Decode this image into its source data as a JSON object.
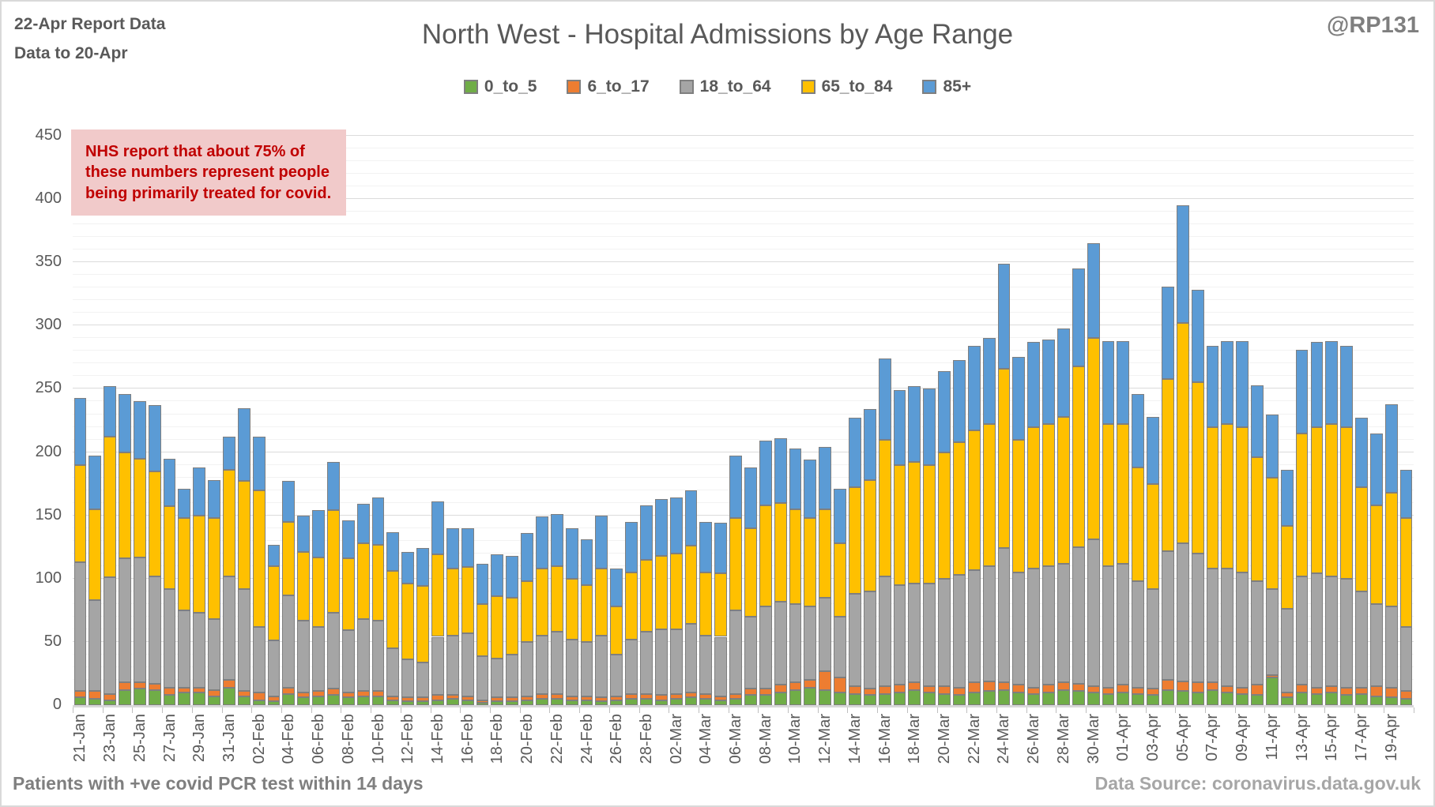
{
  "header": {
    "report_line1": "22-Apr Report Data",
    "report_line2": "Data to 20-Apr",
    "title": "North West - Hospital Admissions by Age Range",
    "watermark": "@RP131"
  },
  "annotation": {
    "text": "NHS report that about 75% of these numbers represent people being primarily treated for covid.",
    "bg_color": "#f1caca",
    "text_color": "#c00000"
  },
  "footer": {
    "left": "Patients with  +ve covid PCR test within 14 days",
    "right": "Data Source: coronavirus.data.gov.uk"
  },
  "colors": {
    "text": "#595959",
    "muted_text": "#7f7f7f",
    "gridline_major": "#dbdbdb",
    "gridline_minor": "#f2f2f2",
    "bar_border": "#7f7f7f"
  },
  "chart_data": {
    "type": "bar",
    "stacked": true,
    "title": "North West - Hospital Admissions by Age Range",
    "xlabel": "",
    "ylabel": "",
    "ylim": [
      0,
      450
    ],
    "ytick_interval": 50,
    "ytick_minor_interval": 10,
    "xtick_label_every": 2,
    "grid": true,
    "legend_position": "top",
    "categories": [
      "21-Jan",
      "22-Jan",
      "23-Jan",
      "24-Jan",
      "25-Jan",
      "26-Jan",
      "27-Jan",
      "28-Jan",
      "29-Jan",
      "30-Jan",
      "31-Jan",
      "01-Feb",
      "02-Feb",
      "03-Feb",
      "04-Feb",
      "05-Feb",
      "06-Feb",
      "07-Feb",
      "08-Feb",
      "09-Feb",
      "10-Feb",
      "11-Feb",
      "12-Feb",
      "13-Feb",
      "14-Feb",
      "15-Feb",
      "16-Feb",
      "17-Feb",
      "18-Feb",
      "19-Feb",
      "20-Feb",
      "21-Feb",
      "22-Feb",
      "23-Feb",
      "24-Feb",
      "25-Feb",
      "26-Feb",
      "27-Feb",
      "28-Feb",
      "01-Mar",
      "02-Mar",
      "03-Mar",
      "04-Mar",
      "05-Mar",
      "06-Mar",
      "07-Mar",
      "08-Mar",
      "09-Mar",
      "10-Mar",
      "11-Mar",
      "12-Mar",
      "13-Mar",
      "14-Mar",
      "15-Mar",
      "16-Mar",
      "17-Mar",
      "18-Mar",
      "19-Mar",
      "20-Mar",
      "21-Mar",
      "22-Mar",
      "23-Mar",
      "24-Mar",
      "25-Mar",
      "26-Mar",
      "27-Mar",
      "28-Mar",
      "29-Mar",
      "30-Mar",
      "31-Mar",
      "01-Apr",
      "02-Apr",
      "03-Apr",
      "04-Apr",
      "05-Apr",
      "06-Apr",
      "07-Apr",
      "08-Apr",
      "09-Apr",
      "10-Apr",
      "11-Apr",
      "12-Apr",
      "13-Apr",
      "14-Apr",
      "15-Apr",
      "16-Apr",
      "17-Apr",
      "18-Apr",
      "19-Apr",
      "20-Apr"
    ],
    "series": [
      {
        "name": "0_to_5",
        "color": "#70ad47",
        "values": [
          6,
          5,
          4,
          12,
          13,
          12,
          8,
          10,
          10,
          7,
          14,
          7,
          4,
          3,
          9,
          6,
          7,
          8,
          6,
          7,
          7,
          4,
          3,
          3,
          4,
          5,
          4,
          2,
          3,
          3,
          4,
          5,
          5,
          4,
          4,
          3,
          4,
          5,
          5,
          4,
          5,
          6,
          5,
          4,
          5,
          8,
          8,
          10,
          12,
          14,
          12,
          10,
          9,
          8,
          9,
          10,
          12,
          10,
          9,
          8,
          10,
          11,
          12,
          10,
          9,
          10,
          12,
          11,
          10,
          9,
          10,
          9,
          8,
          12,
          11,
          10,
          12,
          10,
          9,
          8,
          22,
          6,
          10,
          9,
          10,
          8,
          9,
          7,
          6,
          5
        ]
      },
      {
        "name": "6_to_17",
        "color": "#ed7d31",
        "values": [
          5,
          6,
          5,
          6,
          5,
          5,
          6,
          4,
          4,
          5,
          6,
          4,
          6,
          4,
          5,
          4,
          4,
          5,
          4,
          4,
          4,
          3,
          3,
          3,
          4,
          3,
          3,
          2,
          3,
          3,
          3,
          4,
          4,
          3,
          3,
          3,
          3,
          4,
          4,
          4,
          4,
          4,
          4,
          3,
          4,
          5,
          5,
          6,
          6,
          6,
          15,
          12,
          6,
          5,
          6,
          6,
          6,
          5,
          6,
          6,
          8,
          8,
          6,
          6,
          5,
          6,
          6,
          6,
          5,
          5,
          6,
          5,
          5,
          8,
          8,
          8,
          6,
          5,
          5,
          8,
          2,
          4,
          6,
          5,
          5,
          6,
          5,
          8,
          8,
          6
        ]
      },
      {
        "name": "18_to_64",
        "color": "#a5a5a5",
        "values": [
          102,
          72,
          92,
          98,
          99,
          85,
          78,
          61,
          59,
          56,
          82,
          81,
          52,
          44,
          73,
          57,
          51,
          60,
          49,
          57,
          56,
          38,
          30,
          28,
          46,
          47,
          50,
          35,
          31,
          34,
          43,
          46,
          49,
          45,
          43,
          49,
          33,
          43,
          49,
          52,
          51,
          54,
          46,
          47,
          66,
          57,
          65,
          66,
          62,
          58,
          58,
          48,
          73,
          77,
          87,
          79,
          78,
          81,
          85,
          89,
          89,
          91,
          106,
          89,
          94,
          94,
          94,
          108,
          116,
          96,
          96,
          84,
          79,
          102,
          109,
          102,
          90,
          93,
          91,
          82,
          68,
          66,
          86,
          90,
          87,
          86,
          76,
          65,
          64,
          51
        ]
      },
      {
        "name": "65_to_84",
        "color": "#ffc000",
        "values": [
          77,
          72,
          111,
          84,
          78,
          83,
          65,
          73,
          77,
          80,
          84,
          85,
          108,
          59,
          58,
          54,
          55,
          81,
          57,
          60,
          60,
          61,
          60,
          60,
          65,
          53,
          52,
          41,
          49,
          45,
          48,
          53,
          52,
          48,
          45,
          53,
          38,
          53,
          57,
          58,
          60,
          62,
          50,
          50,
          73,
          70,
          80,
          78,
          75,
          70,
          70,
          58,
          84,
          88,
          108,
          95,
          96,
          94,
          100,
          105,
          110,
          112,
          142,
          105,
          112,
          112,
          116,
          143,
          159,
          112,
          110,
          90,
          83,
          136,
          174,
          135,
          112,
          114,
          115,
          98,
          88,
          66,
          113,
          116,
          120,
          120,
          82,
          78,
          90,
          86
        ]
      },
      {
        "name": "85+",
        "color": "#5b9bd5",
        "values": [
          53,
          42,
          40,
          46,
          45,
          52,
          38,
          23,
          38,
          30,
          26,
          58,
          42,
          17,
          32,
          29,
          37,
          38,
          30,
          31,
          37,
          31,
          25,
          30,
          42,
          32,
          31,
          32,
          33,
          33,
          38,
          41,
          41,
          40,
          36,
          42,
          30,
          40,
          43,
          45,
          44,
          44,
          40,
          40,
          49,
          48,
          51,
          51,
          48,
          46,
          49,
          43,
          55,
          56,
          64,
          59,
          60,
          60,
          64,
          65,
          67,
          68,
          83,
          65,
          67,
          67,
          70,
          77,
          75,
          66,
          66,
          58,
          53,
          73,
          93,
          73,
          64,
          66,
          68,
          57,
          50,
          44,
          66,
          67,
          66,
          64,
          55,
          57,
          70,
          38
        ]
      }
    ]
  }
}
